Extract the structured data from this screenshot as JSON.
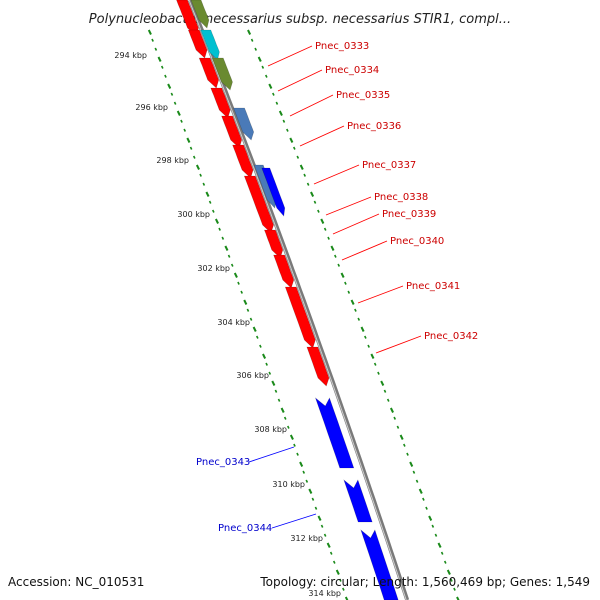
{
  "map": {
    "title": "Polynucleobacter necessarius subsp. necessarius STIR1, compl...",
    "accession": "Accession: NC_010531",
    "summary": "Topology: circular; Length: 1,560,469 bp; Genes: 1,549",
    "colors": {
      "forward_strand": "#ff0000",
      "reverse_strand": "#0000ff",
      "tick_green": "#1a8a1a",
      "backbone": "#7a7a7a",
      "cyan_feature": "#00c0d0",
      "olive_feature": "#6a8a30",
      "steel_feature": "#4a7ab8",
      "label_forward": "#cc0000",
      "label_reverse": "#0000cc"
    },
    "scale_labels": [
      {
        "text": "294 kbp",
        "kbp": 294
      },
      {
        "text": "296 kbp",
        "kbp": 296
      },
      {
        "text": "298 kbp",
        "kbp": 298
      },
      {
        "text": "300 kbp",
        "kbp": 300
      },
      {
        "text": "302 kbp",
        "kbp": 302
      },
      {
        "text": "304 kbp",
        "kbp": 304
      },
      {
        "text": "306 kbp",
        "kbp": 306
      },
      {
        "text": "308 kbp",
        "kbp": 308
      },
      {
        "text": "310 kbp",
        "kbp": 310
      },
      {
        "text": "312 kbp",
        "kbp": 312
      },
      {
        "text": "314 kbp",
        "kbp": 314
      }
    ],
    "gene_labels": [
      {
        "text": "Pnec_0333",
        "strand": "forward"
      },
      {
        "text": "Pnec_0334",
        "strand": "forward"
      },
      {
        "text": "Pnec_0335",
        "strand": "forward"
      },
      {
        "text": "Pnec_0336",
        "strand": "forward"
      },
      {
        "text": "Pnec_0337",
        "strand": "forward"
      },
      {
        "text": "Pnec_0338",
        "strand": "forward"
      },
      {
        "text": "Pnec_0339",
        "strand": "forward"
      },
      {
        "text": "Pnec_0340",
        "strand": "forward"
      },
      {
        "text": "Pnec_0341",
        "strand": "forward"
      },
      {
        "text": "Pnec_0342",
        "strand": "forward"
      },
      {
        "text": "Pnec_0343",
        "strand": "reverse"
      },
      {
        "text": "Pnec_0344",
        "strand": "reverse"
      }
    ]
  }
}
